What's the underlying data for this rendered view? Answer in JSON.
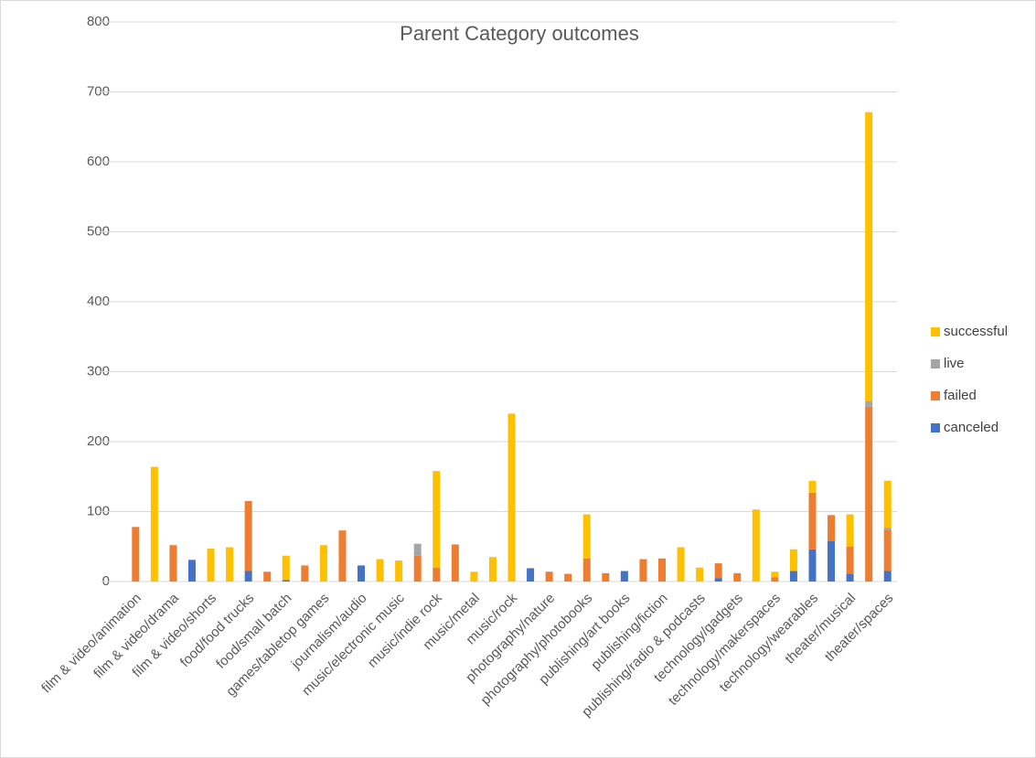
{
  "chart_data": {
    "type": "stacked_bar",
    "title": "Parent Category outcomes",
    "categories": [
      "film & video/animation",
      null,
      "film & video/drama",
      null,
      "film & video/shorts",
      null,
      "food/food trucks",
      null,
      "food/small batch",
      null,
      "games/tabletop games",
      null,
      "journalism/audio",
      null,
      "music/electronic music",
      null,
      "music/indie rock",
      null,
      "music/metal",
      null,
      "music/rock",
      null,
      "photography/nature",
      null,
      "photography/photobooks",
      null,
      "publishing/art books",
      null,
      "publishing/fiction",
      null,
      "publishing/radio & podcasts",
      null,
      "technology/gadgets",
      null,
      "technology/makerspaces",
      null,
      "technology/wearables",
      null,
      "theater/musical",
      null,
      "theater/spaces"
    ],
    "series": [
      {
        "name": "canceled",
        "color": "#4472c4",
        "values": [
          0,
          0,
          0,
          31,
          0,
          0,
          15,
          0,
          2,
          0,
          0,
          0,
          23,
          0,
          0,
          0,
          0,
          0,
          0,
          0,
          0,
          19,
          0,
          0,
          0,
          0,
          15,
          0,
          0,
          0,
          0,
          5,
          0,
          0,
          0,
          15,
          46,
          58,
          11,
          0,
          15
        ]
      },
      {
        "name": "failed",
        "color": "#ed7d31",
        "values": [
          78,
          0,
          52,
          0,
          0,
          0,
          100,
          14,
          0,
          23,
          0,
          73,
          0,
          0,
          0,
          37,
          20,
          53,
          0,
          0,
          0,
          0,
          14,
          11,
          33,
          12,
          0,
          32,
          33,
          0,
          0,
          21,
          12,
          0,
          6,
          0,
          81,
          37,
          39,
          250,
          59
        ]
      },
      {
        "name": "live",
        "color": "#a5a5a5",
        "values": [
          0,
          0,
          0,
          0,
          0,
          0,
          0,
          0,
          0,
          0,
          0,
          0,
          0,
          0,
          0,
          17,
          0,
          0,
          0,
          0,
          0,
          0,
          0,
          0,
          0,
          0,
          0,
          0,
          0,
          0,
          0,
          0,
          0,
          0,
          0,
          0,
          0,
          0,
          0,
          8,
          3
        ]
      },
      {
        "name": "successful",
        "color": "#ffc000",
        "values": [
          0,
          164,
          0,
          0,
          47,
          49,
          0,
          0,
          35,
          0,
          52,
          0,
          0,
          32,
          30,
          0,
          138,
          0,
          14,
          35,
          240,
          0,
          0,
          0,
          63,
          0,
          0,
          0,
          0,
          49,
          20,
          0,
          0,
          103,
          8,
          31,
          17,
          0,
          46,
          413,
          67
        ]
      }
    ],
    "ylim": [
      0,
      800
    ],
    "yticks": [
      0,
      100,
      200,
      300,
      400,
      500,
      600,
      700,
      800
    ],
    "grid": true,
    "legend": "right"
  }
}
